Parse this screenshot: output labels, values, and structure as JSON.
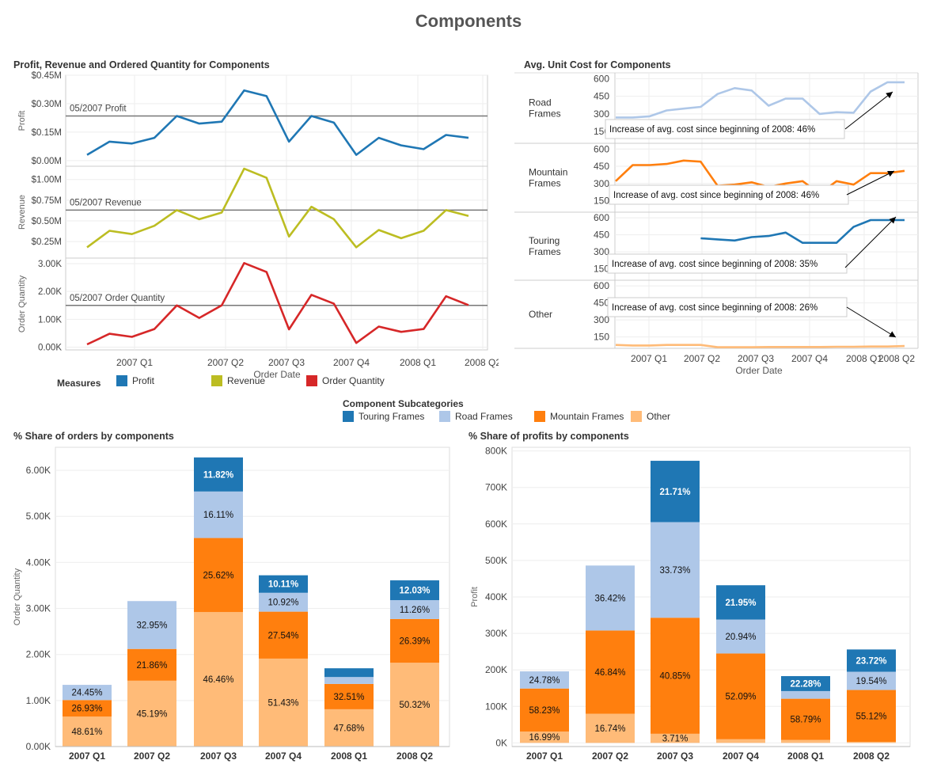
{
  "dashboard": {
    "title": "Components"
  },
  "colors": {
    "profit": "#1f77b4",
    "revenue": "#bcbd22",
    "order_quantity": "#d62728",
    "touring": "#1f77b4",
    "road": "#aec7e8",
    "mountain": "#ff7f0e",
    "other": "#ffbb78",
    "refline": "#777777"
  },
  "measures_legend": {
    "title": "Measures",
    "items": [
      {
        "label": "Profit",
        "color": "#1f77b4"
      },
      {
        "label": "Revenue",
        "color": "#bcbd22"
      },
      {
        "label": "Order Quantity",
        "color": "#d62728"
      }
    ]
  },
  "subcategory_legend": {
    "title": "Component Subcategories",
    "items": [
      {
        "label": "Touring Frames",
        "color": "#1f77b4"
      },
      {
        "label": "Road Frames",
        "color": "#aec7e8"
      },
      {
        "label": "Mountain Frames",
        "color": "#ff7f0e"
      },
      {
        "label": "Other",
        "color": "#ffbb78"
      }
    ]
  },
  "chart_data": [
    {
      "id": "measures",
      "type": "line",
      "title": "Profit, Revenue and Ordered Quantity for Components",
      "xlabel": "Order Date",
      "x_ticks": [
        "2007 Q1",
        "2007 Q2",
        "2007 Q3",
        "2007 Q4",
        "2008 Q1",
        "2008 Q2"
      ],
      "panels": [
        {
          "name": "Profit",
          "ylabel": "Profit",
          "ylim": [
            -30000,
            450000
          ],
          "yticks": [
            0,
            150000,
            300000,
            450000
          ],
          "ytick_labels": [
            "$0.00M",
            "$0.15M",
            "$0.30M",
            "$0.45M"
          ],
          "reference": {
            "label": "05/2007 Profit",
            "value": 235000
          },
          "values": [
            30000,
            100000,
            90000,
            120000,
            235000,
            195000,
            205000,
            370000,
            340000,
            100000,
            235000,
            200000,
            30000,
            120000,
            80000,
            60000,
            135000,
            120000
          ]
        },
        {
          "name": "Revenue",
          "ylabel": "Revenue",
          "ylim": [
            50000,
            1160000
          ],
          "yticks": [
            250000,
            500000,
            750000,
            1000000
          ],
          "ytick_labels": [
            "$0.25M",
            "$0.50M",
            "$0.75M",
            "$1.00M"
          ],
          "reference": {
            "label": "05/2007 Revenue",
            "value": 630000
          },
          "values": [
            180000,
            380000,
            340000,
            440000,
            630000,
            520000,
            600000,
            1130000,
            1020000,
            310000,
            670000,
            520000,
            180000,
            390000,
            290000,
            380000,
            630000,
            560000
          ]
        },
        {
          "name": "Order Quantity",
          "ylabel": "Order Quantity",
          "ylim": [
            -100,
            3200
          ],
          "yticks": [
            0,
            1000,
            2000,
            3000
          ],
          "ytick_labels": [
            "0.00K",
            "1.00K",
            "2.00K",
            "3.00K"
          ],
          "reference": {
            "label": "05/2007 Order Quantity",
            "value": 1500
          },
          "values": [
            100,
            480,
            370,
            650,
            1500,
            1050,
            1500,
            3020,
            2700,
            640,
            1880,
            1560,
            150,
            740,
            550,
            650,
            1830,
            1510
          ]
        }
      ]
    },
    {
      "id": "unit_cost",
      "type": "line",
      "title": "Avg. Unit Cost for Components",
      "xlabel": "Order Date",
      "x_ticks": [
        "2007 Q1",
        "2007 Q2",
        "2007 Q3",
        "2007 Q4",
        "2008 Q1",
        "2008 Q2"
      ],
      "ylim": [
        50,
        650
      ],
      "yticks": [
        150,
        300,
        450,
        600
      ],
      "panels": [
        {
          "name": "Road Frames",
          "label_lines": [
            "Road",
            "Frames"
          ],
          "color_key": "road",
          "annotation": "Increase of avg. cost since beginning of 2008: 46%",
          "values": [
            270,
            270,
            280,
            330,
            345,
            360,
            470,
            520,
            500,
            370,
            430,
            430,
            300,
            315,
            310,
            490,
            570,
            570
          ]
        },
        {
          "name": "Mountain Frames",
          "label_lines": [
            "Mountain",
            "Frames"
          ],
          "color_key": "mountain",
          "annotation": "Increase of avg. cost since beginning of 2008: 46%",
          "values": [
            320,
            460,
            460,
            470,
            500,
            490,
            280,
            290,
            310,
            270,
            300,
            320,
            210,
            320,
            290,
            390,
            390,
            410
          ]
        },
        {
          "name": "Touring Frames",
          "label_lines": [
            "Touring",
            "Frames"
          ],
          "color_key": "touring",
          "annotation": "Increase of avg. cost since beginning of 2008: 35%",
          "values": [
            null,
            null,
            null,
            null,
            null,
            420,
            410,
            400,
            430,
            440,
            470,
            380,
            380,
            380,
            520,
            580,
            580,
            580
          ]
        },
        {
          "name": "Other",
          "label_lines": [
            "Other"
          ],
          "color_key": "other",
          "annotation": "Increase of avg. cost since beginning of 2008: 26%",
          "values": [
            80,
            75,
            75,
            80,
            80,
            80,
            60,
            60,
            60,
            62,
            62,
            62,
            62,
            64,
            64,
            66,
            66,
            70
          ]
        }
      ]
    },
    {
      "id": "orders_share",
      "type": "bar",
      "stacked": true,
      "title": "% Share of orders by components",
      "ylabel": "Order Quantity",
      "ylim": [
        0,
        6500
      ],
      "yticks": [
        0,
        1000,
        2000,
        3000,
        4000,
        5000,
        6000
      ],
      "ytick_labels": [
        "0.00K",
        "1.00K",
        "2.00K",
        "3.00K",
        "4.00K",
        "5.00K",
        "6.00K"
      ],
      "categories": [
        "2007 Q1",
        "2007 Q2",
        "2007 Q3",
        "2007 Q4",
        "2008 Q1",
        "2008 Q2"
      ],
      "series": [
        {
          "name": "Other",
          "color_key": "other",
          "values": [
            650,
            1430,
            2920,
            1910,
            810,
            1820
          ],
          "labels": [
            "48.61%",
            "45.19%",
            "46.46%",
            "51.43%",
            "47.68%",
            "50.32%"
          ]
        },
        {
          "name": "Mountain Frames",
          "color_key": "mountain",
          "values": [
            360,
            690,
            1610,
            1020,
            550,
            950
          ],
          "labels": [
            "26.93%",
            "21.86%",
            "25.62%",
            "27.54%",
            "32.51%",
            "26.39%"
          ]
        },
        {
          "name": "Road Frames",
          "color_key": "road",
          "values": [
            330,
            1040,
            1010,
            410,
            150,
            410
          ],
          "labels": [
            "24.45%",
            "32.95%",
            "16.11%",
            "10.92%",
            "",
            "11.26%"
          ]
        },
        {
          "name": "Touring Frames",
          "color_key": "touring",
          "values": [
            0,
            0,
            740,
            380,
            190,
            430
          ],
          "labels": [
            "",
            "",
            "11.82%",
            "10.11%",
            "",
            "12.03%"
          ]
        }
      ]
    },
    {
      "id": "profits_share",
      "type": "bar",
      "stacked": true,
      "title": "% Share of profits by components",
      "ylabel": "Profit",
      "ylim": [
        -10000,
        810000
      ],
      "yticks": [
        0,
        100000,
        200000,
        300000,
        400000,
        500000,
        600000,
        700000,
        800000
      ],
      "ytick_labels": [
        "0K",
        "100K",
        "200K",
        "300K",
        "400K",
        "500K",
        "600K",
        "700K",
        "800K"
      ],
      "categories": [
        "2007 Q1",
        "2007 Q2",
        "2007 Q3",
        "2007 Q4",
        "2008 Q1",
        "2008 Q2"
      ],
      "series": [
        {
          "name": "Other",
          "color_key": "other",
          "values": [
            31000,
            80000,
            25000,
            10000,
            8000,
            3000
          ],
          "labels": [
            "16.99%",
            "16.74%",
            "3.71%",
            "",
            "",
            ""
          ]
        },
        {
          "name": "Mountain Frames",
          "color_key": "mountain",
          "values": [
            118000,
            228000,
            318000,
            235000,
            113000,
            142000
          ],
          "labels": [
            "58.23%",
            "46.84%",
            "40.85%",
            "52.09%",
            "58.79%",
            "55.12%"
          ]
        },
        {
          "name": "Road Frames",
          "color_key": "road",
          "values": [
            47000,
            178000,
            262000,
            93000,
            21000,
            50000
          ],
          "labels": [
            "24.78%",
            "36.42%",
            "33.73%",
            "20.94%",
            "",
            "19.54%"
          ]
        },
        {
          "name": "Touring Frames",
          "color_key": "touring",
          "values": [
            0,
            0,
            168000,
            94000,
            41000,
            61000
          ],
          "labels": [
            "",
            "",
            "21.71%",
            "21.95%",
            "22.28%",
            "23.72%"
          ]
        }
      ]
    }
  ]
}
